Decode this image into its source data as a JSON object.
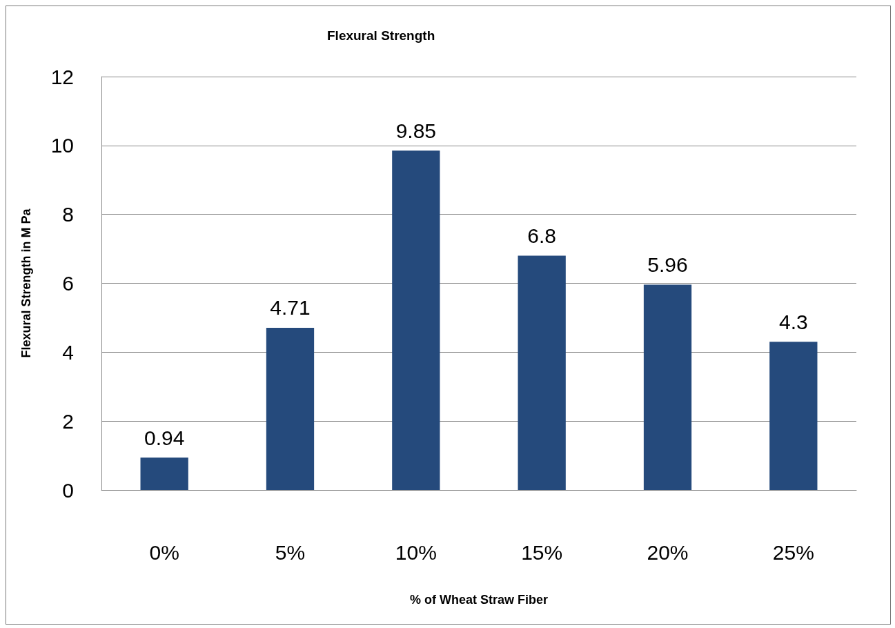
{
  "chart_data": {
    "type": "bar",
    "title": "Flexural Strength",
    "xlabel": "% of Wheat Straw Fiber",
    "ylabel": "Flexural Strength in M Pa",
    "categories": [
      "0%",
      "5%",
      "10%",
      "15%",
      "20%",
      "25%"
    ],
    "values": [
      0.94,
      4.71,
      9.85,
      6.8,
      5.96,
      4.3
    ],
    "color": "#254a7c",
    "data_labels": true,
    "grid": "y",
    "ylim": [
      0,
      12
    ],
    "yticks": [
      0,
      2,
      4,
      6,
      8,
      10,
      12
    ]
  }
}
